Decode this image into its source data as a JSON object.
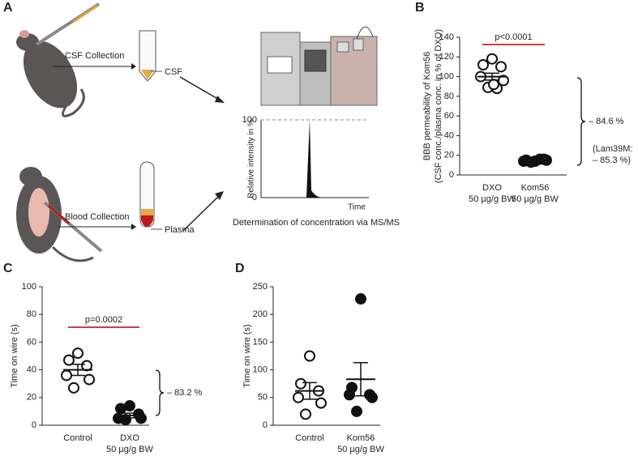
{
  "diagram": {
    "label": "A",
    "csf_step": "CSF Collection",
    "csf": "CSF",
    "blood_step": "Blood Collection",
    "plasma": "Plasma",
    "ms_ylabel": "Relative intensity in %",
    "ms_top": "100",
    "ms_bottom": "0",
    "ms_xlabel": "Time",
    "caption": "Determination of concentration via MS/MS"
  },
  "chart_data": [
    {
      "type": "dotplot",
      "label": "B",
      "ylabel": [
        "BBB permeability of Kom56",
        "(CSF conc./plasma conc. in % of DXO)"
      ],
      "categories": [
        [
          "DXO",
          "50 µg/g BW"
        ],
        [
          "Kom56",
          "50 µg/g BW"
        ]
      ],
      "markers": [
        "open",
        "filled"
      ],
      "groups": [
        [
          118,
          112,
          110,
          100,
          96,
          89,
          88,
          92
        ],
        [
          14,
          15,
          16,
          14,
          15,
          13,
          16
        ]
      ],
      "means": [
        100,
        15
      ],
      "sem": [
        3.5,
        0.5
      ],
      "ylim": [
        0,
        140
      ],
      "yticks": [
        0,
        20,
        40,
        60,
        80,
        100,
        120,
        140
      ],
      "p_label": "p<0.0001",
      "reduction": [
        "– 84.6 %",
        "(Lam39M:",
        "– 85.3 %)"
      ]
    },
    {
      "type": "dotplot",
      "label": "C",
      "ylabel": [
        "Time on wire (s)"
      ],
      "categories": [
        [
          "Control"
        ],
        [
          "DXO",
          "50 µg/g BW"
        ]
      ],
      "markers": [
        "open",
        "filled"
      ],
      "groups": [
        [
          52,
          47,
          43,
          36,
          33,
          27
        ],
        [
          14,
          12,
          8,
          5,
          5,
          4
        ]
      ],
      "means": [
        40,
        7
      ],
      "sem": [
        4,
        1.7
      ],
      "ylim": [
        0,
        100
      ],
      "yticks": [
        0,
        20,
        40,
        60,
        80,
        100
      ],
      "p_label": "p=0.0002",
      "reduction": [
        "– 83.2 %"
      ]
    },
    {
      "type": "dotplot",
      "label": "D",
      "ylabel": [
        "Time on wire (s)"
      ],
      "categories": [
        [
          "Control"
        ],
        [
          "Kom56",
          "50 µg/g BW"
        ]
      ],
      "markers": [
        "open",
        "filled"
      ],
      "groups": [
        [
          125,
          75,
          62,
          50,
          40,
          20
        ],
        [
          228,
          68,
          55,
          55,
          50,
          25
        ]
      ],
      "means": [
        62,
        83
      ],
      "sem": [
        15,
        30
      ],
      "ylim": [
        0,
        250
      ],
      "yticks": [
        0,
        50,
        100,
        150,
        200,
        250
      ]
    }
  ]
}
